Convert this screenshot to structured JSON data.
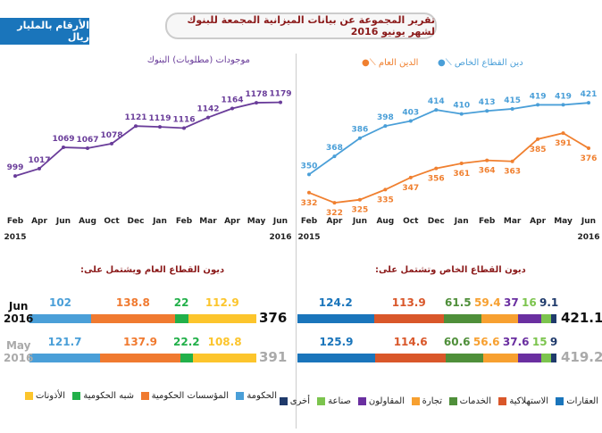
{
  "header": {
    "badge": "الأرقام بالمليار ريال",
    "title": "تقرير المجموعة عن بيانات الميزانية المجمعة للبنوك لشهر يونيو 2016"
  },
  "chart_data": [
    {
      "type": "line",
      "title": "موجودات (مطلوبات) البنوك",
      "categories": [
        "Feb",
        "Apr",
        "Jun",
        "Aug",
        "Oct",
        "Dec",
        "Jan",
        "Feb",
        "Mar",
        "Apr",
        "May",
        "Jun"
      ],
      "year_labels": [
        "2015",
        "2016"
      ],
      "ylim": [
        960,
        1200
      ],
      "series": [
        {
          "values": [
            999,
            1017,
            1069,
            1067,
            1078,
            1121,
            1119,
            1116,
            1142,
            1164,
            1178,
            1179
          ],
          "color": "#6a3d9a"
        }
      ]
    },
    {
      "type": "line",
      "categories": [
        "Feb",
        "Apr",
        "Jun",
        "Aug",
        "Oct",
        "Dec",
        "Jan",
        "Feb",
        "Mar",
        "Apr",
        "May",
        "Jun"
      ],
      "year_labels": [
        "2015",
        "2016"
      ],
      "ylim": [
        315,
        430
      ],
      "series": [
        {
          "name": "دين القطاع الخاص",
          "values": [
            350,
            368,
            386,
            398,
            403,
            414,
            410,
            413,
            415,
            419,
            419,
            421
          ],
          "color": "#4a9fd8"
        },
        {
          "name": "الدين العام",
          "values": [
            332,
            322,
            325,
            335,
            347,
            356,
            361,
            364,
            363,
            385,
            391,
            376
          ],
          "color": "#f08030"
        }
      ]
    },
    {
      "type": "bar",
      "stacked": true,
      "orientation": "horizontal",
      "title": "ديون القطاع العام ويشتمل على:",
      "categories": [
        "Jun 2016",
        "May 2016"
      ],
      "totals": [
        "376",
        "391"
      ],
      "series": [
        {
          "name": "الحكومة",
          "values": [
            102,
            121.7
          ],
          "color": "#4a9fd8"
        },
        {
          "name": "المؤسسات الحكومية",
          "values": [
            138.8,
            137.9
          ],
          "color": "#f07a30"
        },
        {
          "name": "شبه الحكومية",
          "values": [
            22,
            22.2
          ],
          "color": "#22b04a"
        },
        {
          "name": "الأذونات",
          "values": [
            112.9,
            108.8
          ],
          "color": "#fcc52c"
        }
      ]
    },
    {
      "type": "bar",
      "stacked": true,
      "orientation": "horizontal",
      "title": "ديون القطاع الخاص وتشتمل على:",
      "categories": [
        "Jun 2016",
        "May 2016"
      ],
      "totals": [
        "421.1",
        "419.2"
      ],
      "series": [
        {
          "name": "العقارات",
          "values": [
            124.2,
            125.9
          ],
          "color": "#1a75bb"
        },
        {
          "name": "الاستهلاكية",
          "values": [
            113.9,
            114.6
          ],
          "color": "#d9572a"
        },
        {
          "name": "الخدمات",
          "values": [
            61.5,
            60.6
          ],
          "color": "#4f8f3a"
        },
        {
          "name": "تجارة",
          "values": [
            59.4,
            56.6
          ],
          "color": "#f7a030"
        },
        {
          "name": "المقاولون",
          "values": [
            37,
            37.6
          ],
          "color": "#6a2fa0"
        },
        {
          "name": "صناعة",
          "values": [
            16,
            15
          ],
          "color": "#7cc44e"
        },
        {
          "name": "أخرى",
          "values": [
            9.1,
            9
          ],
          "color": "#1f3a6b"
        }
      ]
    }
  ],
  "bar_row_labels": [
    [
      "Jun",
      "2016"
    ],
    [
      "May",
      "2016"
    ]
  ]
}
